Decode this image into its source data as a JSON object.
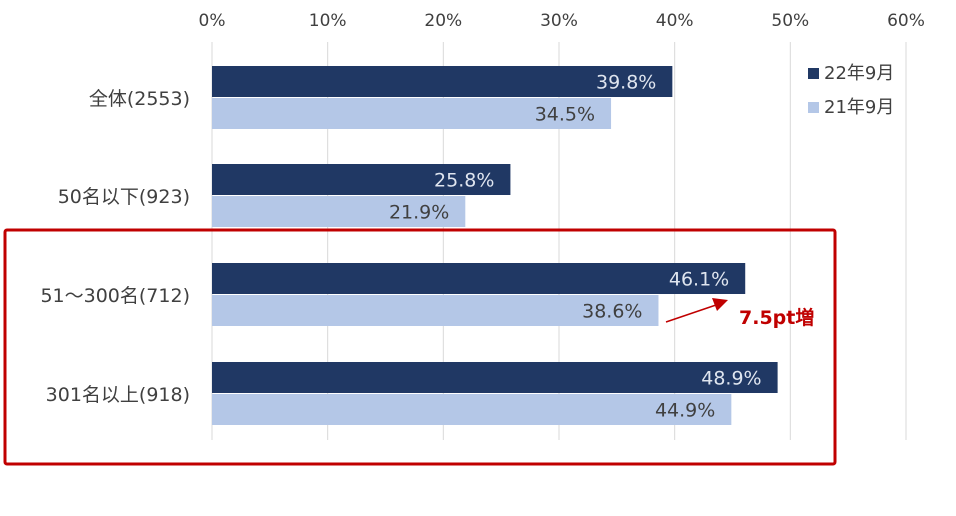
{
  "chart_data": {
    "type": "bar",
    "orientation": "horizontal",
    "categories": [
      "全体(2553)",
      "50名以下(923)",
      "51～300名(712)",
      "301名以上(918)"
    ],
    "series": [
      {
        "name": "22年9月",
        "values": [
          39.8,
          25.8,
          46.1,
          48.9
        ],
        "labels": [
          "39.8%",
          "25.8%",
          "46.1%",
          "48.9%"
        ],
        "color": "#203864",
        "label_color": "#dfe5ef"
      },
      {
        "name": "21年9月",
        "values": [
          34.5,
          21.9,
          38.6,
          44.9
        ],
        "labels": [
          "34.5%",
          "21.9%",
          "38.6%",
          "44.9%"
        ],
        "color": "#b4c7e7",
        "label_color": "#404040"
      }
    ],
    "xticks": [
      "0%",
      "10%",
      "20%",
      "30%",
      "40%",
      "50%",
      "60%"
    ],
    "xlim": [
      0,
      60
    ],
    "grid": true,
    "legend_position": "top-right",
    "highlight": {
      "categories": [
        "51～300名(712)",
        "301名以上(918)"
      ],
      "color": "#c00000"
    },
    "annotation": {
      "text": "7.5pt増",
      "category": "51～300名(712)",
      "color": "#c00000"
    }
  }
}
